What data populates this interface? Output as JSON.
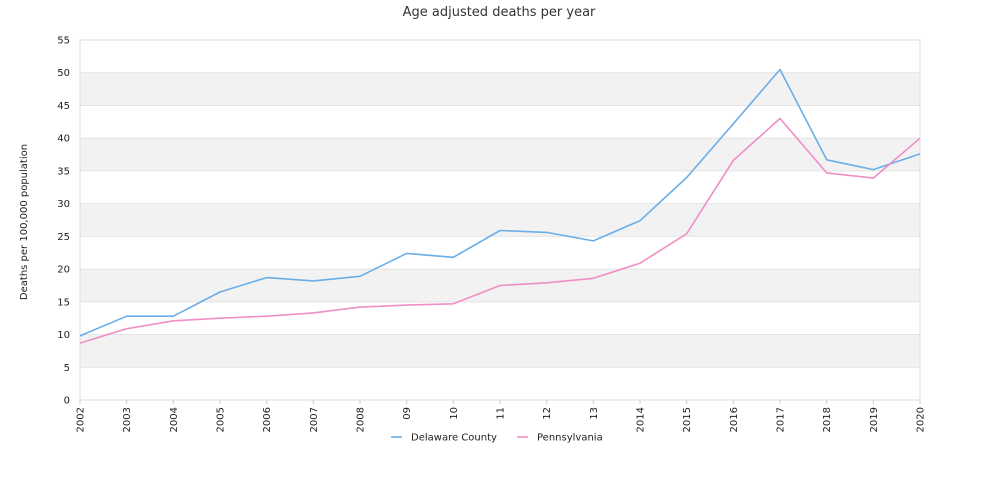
{
  "chart_data": {
    "type": "line",
    "title": "Age adjusted deaths per year",
    "xlabel": "",
    "ylabel": "Deaths per 100,000 population",
    "ylim": [
      0,
      55
    ],
    "yticks": [
      "0",
      "5",
      "10",
      "15",
      "20",
      "25",
      "30",
      "35",
      "40",
      "45",
      "50",
      "55"
    ],
    "categories": [
      "2002",
      "2003",
      "2004",
      "2005",
      "2006",
      "2007",
      "2008",
      "09",
      "10",
      "11",
      "12",
      "13",
      "2014",
      "2015",
      "2016",
      "2017",
      "2018",
      "2019",
      "2020"
    ],
    "grid": "horizontal alternating bands",
    "legend_position": "bottom-center",
    "series": [
      {
        "name": "Delaware County",
        "color": "#6aaee8",
        "values": [
          9.8,
          12.8,
          12.8,
          16.5,
          18.7,
          18.2,
          18.9,
          22.4,
          21.8,
          25.9,
          25.6,
          24.3,
          27.4,
          34.0,
          42.2,
          50.5,
          36.7,
          35.2,
          37.6
        ]
      },
      {
        "name": "Pennsylvania",
        "color": "#ef8fc4",
        "values": [
          8.7,
          10.9,
          12.1,
          12.5,
          12.8,
          13.3,
          14.2,
          14.5,
          14.7,
          17.5,
          17.9,
          18.6,
          20.9,
          25.4,
          36.6,
          43.0,
          34.7,
          33.9,
          40.0
        ]
      }
    ]
  }
}
